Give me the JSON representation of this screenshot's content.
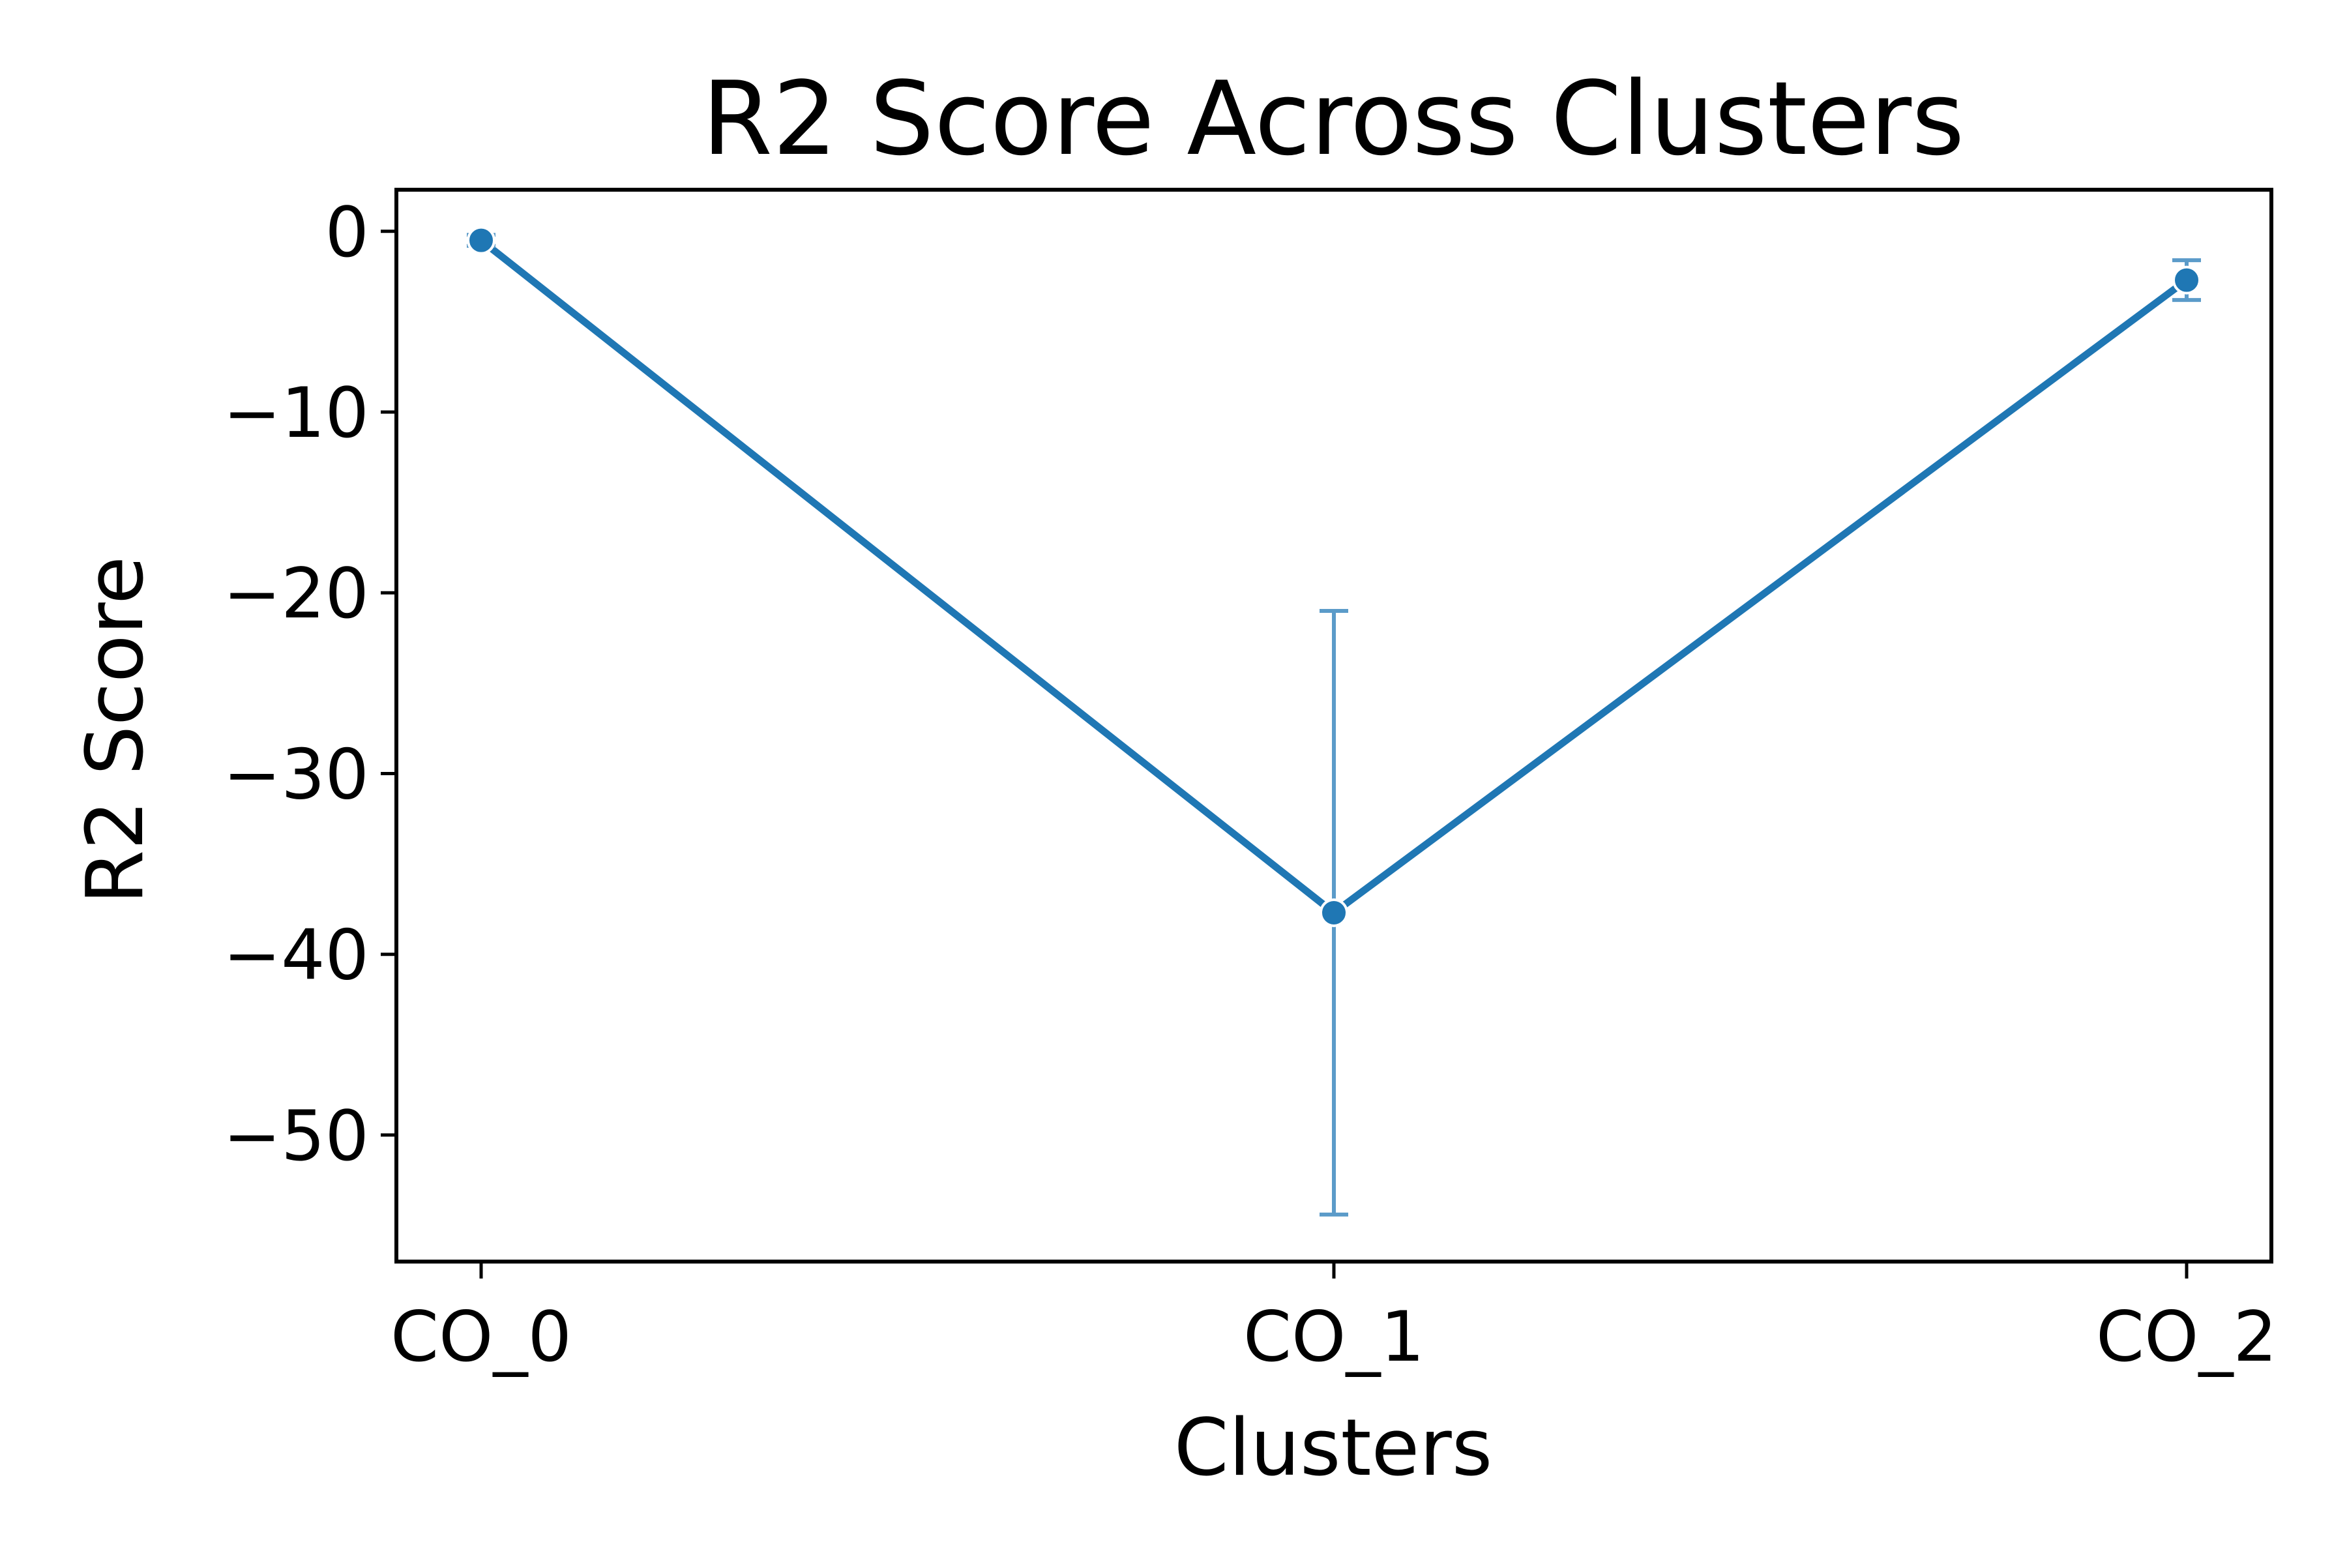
{
  "chart_data": {
    "type": "line",
    "title": "R2 Score Across Clusters",
    "xlabel": "Clusters",
    "ylabel": "R2 Score",
    "categories": [
      "CO_0",
      "CO_1",
      "CO_2"
    ],
    "series": [
      {
        "values": [
          -0.5,
          -37.7,
          -2.7
        ],
        "error": [
          0.3,
          16.7,
          1.1
        ]
      }
    ],
    "yticks": [
      0,
      -10,
      -20,
      -30,
      -40,
      -50
    ],
    "ytick_labels": [
      "0",
      "−10",
      "−20",
      "−30",
      "−40",
      "−50"
    ],
    "ylim": [
      -57,
      2.3
    ],
    "grid": false,
    "line_color": "#1f77b4",
    "errorbar_color": "#5b9bc9"
  }
}
